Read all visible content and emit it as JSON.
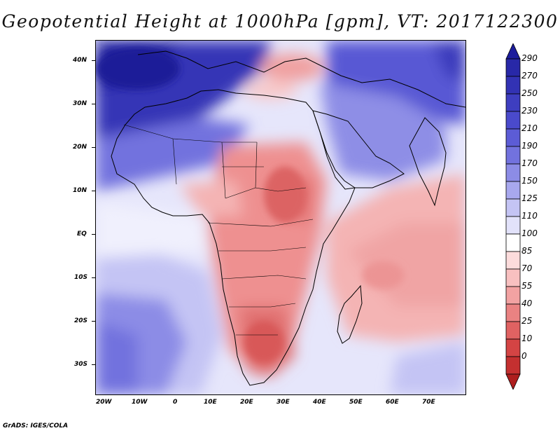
{
  "title": "Geopotential Height at 1000hPa [gpm], VT: 2017122300",
  "credit": "GrADS: IGES/COLA",
  "map": {
    "variable": "Geopotential Height at 1000hPa",
    "units": "gpm",
    "valid_time": "2017122300",
    "lon_range": [
      -22,
      80
    ],
    "lat_range": [
      -37,
      45
    ],
    "lat_labels": [
      "40N",
      "30N",
      "20N",
      "10N",
      "EQ",
      "10S",
      "20S",
      "30S"
    ],
    "lat_values": [
      40,
      30,
      20,
      10,
      0,
      -10,
      -20,
      -30
    ],
    "lon_labels": [
      "20W",
      "10W",
      "0",
      "10E",
      "20E",
      "30E",
      "40E",
      "50E",
      "60E",
      "70E"
    ],
    "lon_values": [
      -20,
      -10,
      0,
      10,
      20,
      30,
      40,
      50,
      60,
      70
    ]
  },
  "colorbar": {
    "labels": [
      "290",
      "270",
      "250",
      "230",
      "210",
      "190",
      "170",
      "150",
      "125",
      "110",
      "100",
      "85",
      "70",
      "55",
      "40",
      "25",
      "10",
      "0"
    ],
    "colors": [
      "#1c1c9c",
      "#2828a8",
      "#3232b4",
      "#3e3ec0",
      "#4a4acc",
      "#5c5cd6",
      "#7272de",
      "#8c8ce6",
      "#a8a8ee",
      "#c4c4f4",
      "#e2e2fa",
      "#ffffff",
      "#fcdcdc",
      "#f8c0c0",
      "#f2a2a2",
      "#ea8282",
      "#e06262",
      "#d44444",
      "#c43030",
      "#ae1e1e"
    ]
  }
}
